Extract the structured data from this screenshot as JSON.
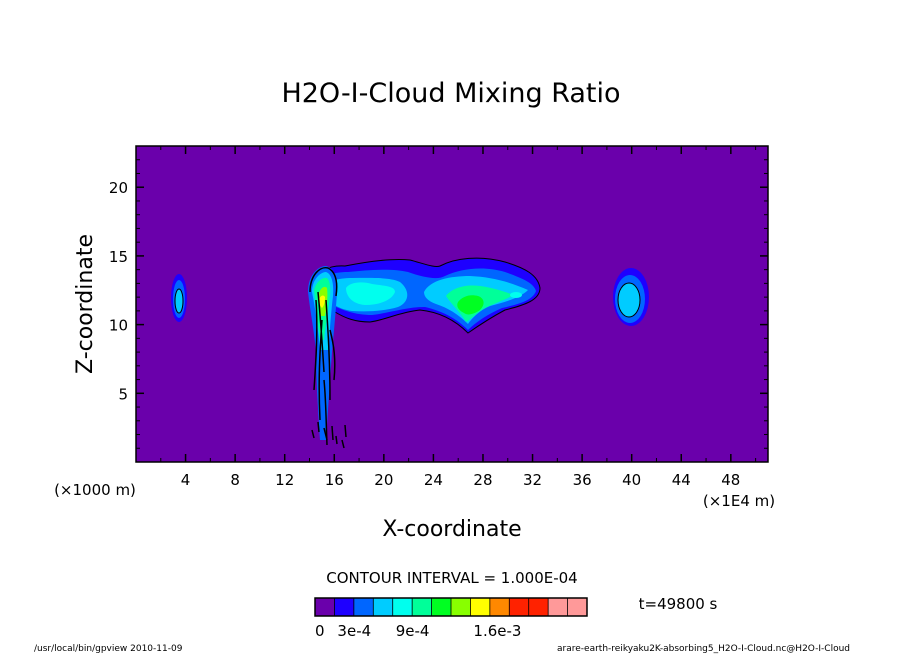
{
  "chart_data": {
    "type": "heatmap",
    "title": "H2O-I-Cloud Mixing Ratio",
    "xlabel": "X-coordinate",
    "ylabel": "Z-coordinate",
    "x_unit_left": "(×1000 m)",
    "x_unit_right": "(×1E4 m)",
    "xlim": [
      0,
      51
    ],
    "ylim": [
      0,
      23
    ],
    "xticks": [
      4,
      8,
      12,
      16,
      20,
      24,
      28,
      32,
      36,
      40,
      44,
      48
    ],
    "yticks": [
      5,
      10,
      15,
      20
    ],
    "background_color": "#6a00ab",
    "contour_interval": "CONTOUR INTERVAL = 1.000E-04",
    "time": "t=49800 s",
    "colorbar": {
      "colors": [
        "#6a00ab",
        "#1e00ff",
        "#0066ff",
        "#00ccff",
        "#00ffee",
        "#00ff99",
        "#00ff22",
        "#88ff00",
        "#ffff00",
        "#ff8800",
        "#ff2200",
        "#ff2200",
        "#ff9999",
        "#ff9999"
      ],
      "labels": [
        "0",
        "3e-4",
        "9e-4",
        "1.6e-3"
      ]
    },
    "features": [
      {
        "name": "cloud-left",
        "x_center": 3.6,
        "z_center": 12.0,
        "max_level": "3e-4"
      },
      {
        "name": "cloud-main",
        "x_range": [
          14.5,
          32.5
        ],
        "z_range": [
          9.6,
          14.6
        ],
        "max_level": "6e-4"
      },
      {
        "name": "cloud-right",
        "x_center": 39.8,
        "z_center": 11.8,
        "max_level": "3e-4"
      },
      {
        "name": "column",
        "x_range": [
          14.8,
          17.0
        ],
        "z_range": [
          1.0,
          14.0
        ]
      }
    ]
  },
  "footer": {
    "left": "/usr/local/bin/gpview   2010-11-09",
    "right": "arare-earth-reikyaku2K-absorbing5_H2O-I-Cloud.nc@H2O-I-Cloud"
  }
}
